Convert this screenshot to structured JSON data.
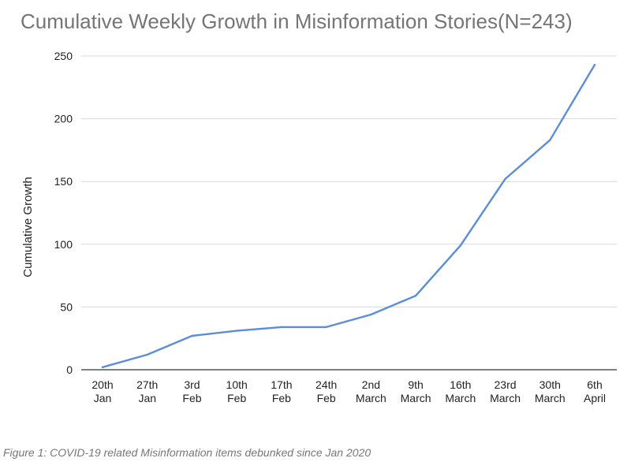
{
  "chart_data": {
    "type": "line",
    "title": "Cumulative Weekly Growth in Misinformation Stories(N=243)",
    "ylabel": "Cumulative Growth",
    "xlabel": "",
    "ylim": [
      0,
      250
    ],
    "yticks": [
      0,
      50,
      100,
      150,
      200,
      250
    ],
    "grid": true,
    "legend": "none",
    "categories": [
      [
        "20th",
        "Jan"
      ],
      [
        "27th",
        "Jan"
      ],
      [
        "3rd",
        "Feb"
      ],
      [
        "10th",
        "Feb"
      ],
      [
        "17th",
        "Feb"
      ],
      [
        "24th",
        "Feb"
      ],
      [
        "2nd",
        "March"
      ],
      [
        "9th",
        "March"
      ],
      [
        "16th",
        "March"
      ],
      [
        "23rd",
        "March"
      ],
      [
        "30th",
        "March"
      ],
      [
        "6th",
        "April"
      ]
    ],
    "series": [
      {
        "color": "#5b8dd9",
        "values": [
          2,
          12,
          27,
          31,
          34,
          34,
          44,
          59,
          99,
          152,
          183,
          243
        ]
      }
    ]
  },
  "caption": "Figure 1: COVID-19 related Misinformation items debunked since Jan 2020"
}
